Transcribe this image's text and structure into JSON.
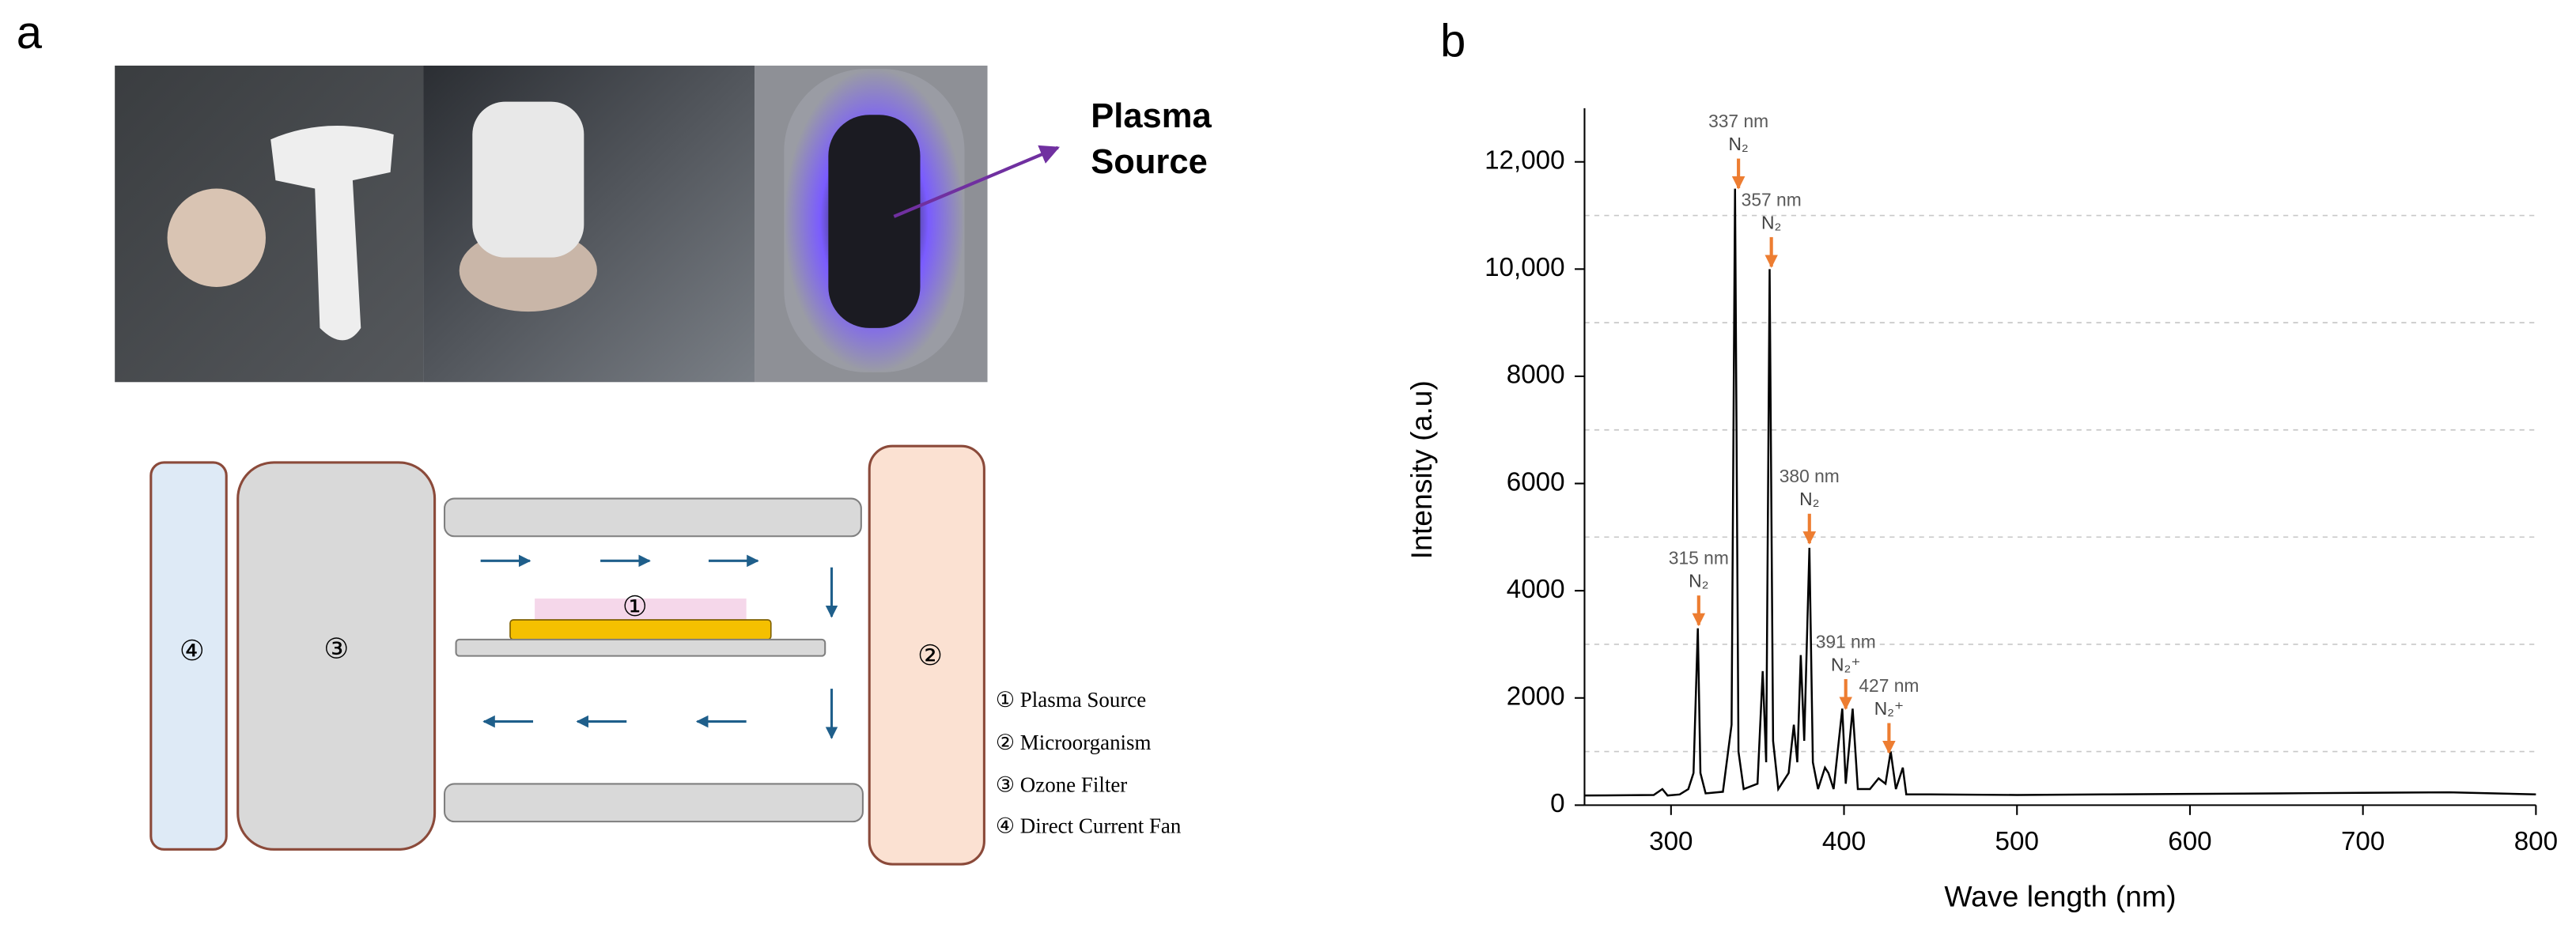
{
  "panel_a": {
    "label": "a",
    "photo_label": [
      "Plasma",
      "Source"
    ],
    "diagram_numbers": [
      "①",
      "②",
      "③",
      "④"
    ],
    "legend": [
      "① Plasma Source",
      "② Microorganism",
      "③ Ozone Filter",
      "④ Direct Current Fan"
    ]
  },
  "chart_data": {
    "type": "line",
    "panel_label": "b",
    "xlabel": "Wave length (nm)",
    "ylabel": "Intensity (a.u)",
    "color": "#000000",
    "x": [
      250,
      290,
      295,
      298,
      305,
      310,
      313,
      315.5,
      317,
      320,
      330,
      335,
      337,
      339,
      342,
      350,
      353,
      355,
      357,
      359,
      362,
      368,
      371,
      373,
      375,
      377,
      380,
      382,
      385,
      389,
      391,
      394,
      399,
      401,
      405,
      408,
      415,
      420,
      424,
      427,
      430,
      434,
      436,
      450,
      500,
      550,
      600,
      650,
      700,
      750,
      800
    ],
    "values": [
      180,
      190,
      300,
      180,
      200,
      300,
      600,
      3300,
      600,
      220,
      250,
      1500,
      11500,
      1000,
      300,
      400,
      2500,
      800,
      10000,
      1200,
      300,
      600,
      1500,
      800,
      2800,
      1200,
      4800,
      800,
      300,
      700,
      600,
      300,
      1800,
      400,
      1800,
      300,
      300,
      500,
      400,
      1000,
      300,
      700,
      200,
      200,
      190,
      200,
      210,
      220,
      230,
      240,
      200
    ],
    "xlim": [
      250,
      800
    ],
    "xticks": [
      300,
      400,
      500,
      600,
      700,
      800
    ],
    "ylim": [
      0,
      13000
    ],
    "yticks": [
      0,
      2000,
      4000,
      6000,
      8000,
      {
        "value": 10000,
        "label": "10,000"
      },
      {
        "value": 12000,
        "label": "12,000"
      }
    ],
    "minor_grid": [
      1000,
      3000,
      5000,
      7000,
      9000,
      11000
    ],
    "annotations": [
      {
        "x": 339,
        "y": 11480,
        "label": "337 nm",
        "species": "N₂"
      },
      {
        "x": 358,
        "y": 10015,
        "label": "357 nm",
        "species": "N₂"
      },
      {
        "x": 380,
        "y": 4855,
        "label": "380 nm",
        "species": "N₂"
      },
      {
        "x": 316,
        "y": 3330,
        "label": "315 nm",
        "species": "N₂"
      },
      {
        "x": 401,
        "y": 1770,
        "label": "391 nm",
        "species": "N₂⁺"
      },
      {
        "x": 426,
        "y": 950,
        "label": "427 nm",
        "species": "N₂⁺"
      }
    ]
  }
}
